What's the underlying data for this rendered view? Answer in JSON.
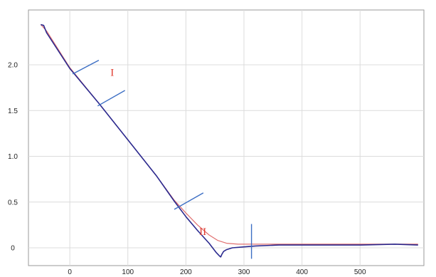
{
  "chart_data": {
    "type": "line",
    "title": "",
    "xlabel": "",
    "ylabel": "",
    "xlim": [
      -70,
      610
    ],
    "ylim": [
      -0.13,
      2.5
    ],
    "grid": true,
    "x_ticks": [
      0,
      100,
      200,
      300,
      400,
      500
    ],
    "y_ticks": [
      0,
      0.5,
      1.0,
      1.5,
      2.0
    ],
    "x_tick_labels": [
      "0",
      "100",
      "200",
      "300",
      "400",
      "500"
    ],
    "y_tick_labels": [
      "0",
      "0.5",
      "1.0",
      "1.5",
      "2.0"
    ],
    "series": [
      {
        "color": "#2b2a8f",
        "points": [
          [
            -50,
            2.44
          ],
          [
            -45,
            2.43
          ],
          [
            -40,
            2.35
          ],
          [
            0,
            1.96
          ],
          [
            50,
            1.58
          ],
          [
            100,
            1.18
          ],
          [
            150,
            0.78
          ],
          [
            180,
            0.51
          ],
          [
            200,
            0.34
          ],
          [
            220,
            0.19
          ],
          [
            240,
            0.05
          ],
          [
            252,
            -0.05
          ],
          [
            258,
            -0.09
          ],
          [
            260,
            -0.1
          ],
          [
            262,
            -0.07
          ],
          [
            265,
            -0.04
          ],
          [
            270,
            -0.02
          ],
          [
            280,
            0.0
          ],
          [
            300,
            0.01
          ],
          [
            320,
            0.02
          ],
          [
            360,
            0.03
          ],
          [
            420,
            0.03
          ],
          [
            500,
            0.03
          ],
          [
            560,
            0.04
          ],
          [
            600,
            0.03
          ]
        ]
      },
      {
        "color": "#e07070",
        "points": [
          [
            -50,
            2.44
          ],
          [
            -40,
            2.37
          ],
          [
            0,
            1.97
          ],
          [
            50,
            1.58
          ],
          [
            100,
            1.18
          ],
          [
            150,
            0.78
          ],
          [
            180,
            0.52
          ],
          [
            200,
            0.38
          ],
          [
            220,
            0.25
          ],
          [
            240,
            0.14
          ],
          [
            255,
            0.08
          ],
          [
            270,
            0.05
          ],
          [
            290,
            0.04
          ],
          [
            320,
            0.04
          ],
          [
            400,
            0.04
          ],
          [
            500,
            0.04
          ],
          [
            600,
            0.04
          ]
        ]
      }
    ],
    "markers": [
      {
        "color": "#3d6fc4",
        "x1": 5,
        "y1": 1.9,
        "x2": 50,
        "y2": 2.05
      },
      {
        "color": "#3d6fc4",
        "x1": 48,
        "y1": 1.55,
        "x2": 95,
        "y2": 1.72
      },
      {
        "color": "#3d6fc4",
        "x1": 180,
        "y1": 0.42,
        "x2": 230,
        "y2": 0.6
      },
      {
        "color": "#3d6fc4",
        "x1": 313,
        "y1": -0.12,
        "x2": 313,
        "y2": 0.26
      }
    ],
    "annotations": [
      {
        "text": "I",
        "x": 70,
        "y": 1.88,
        "color": "#e03a2e"
      },
      {
        "text": "II",
        "x": 223,
        "y": 0.14,
        "color": "#e03a2e"
      }
    ]
  }
}
